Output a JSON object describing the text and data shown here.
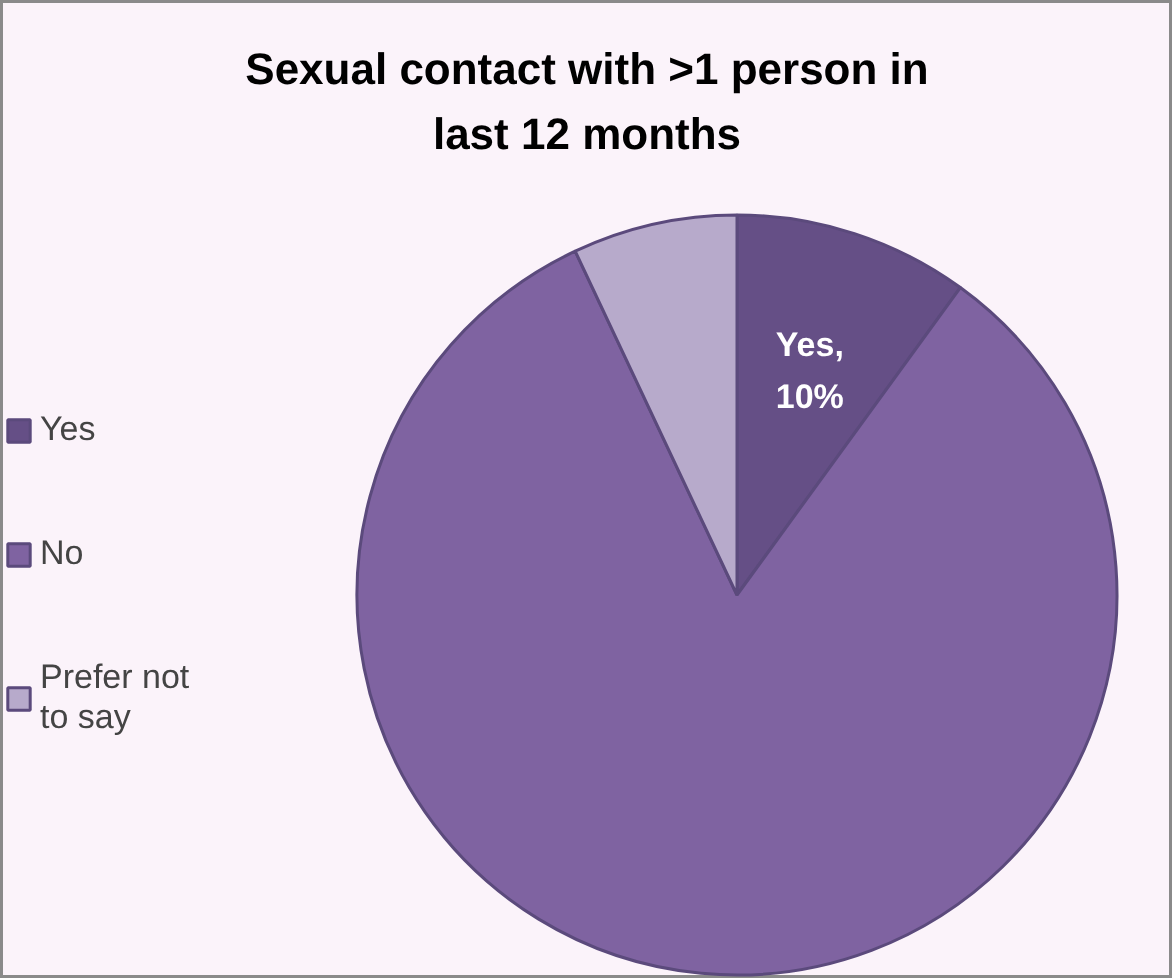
{
  "chart_data": {
    "type": "pie",
    "title": "Sexual contact with >1 person in last 12 months",
    "categories": [
      "Yes",
      "No",
      "Prefer not to say"
    ],
    "values": [
      10,
      83,
      7
    ],
    "colors": [
      "#654f86",
      "#7f63a1",
      "#b7aacb"
    ],
    "value_labels": [
      "Yes,\n10%",
      null,
      null
    ],
    "legend": "left"
  }
}
